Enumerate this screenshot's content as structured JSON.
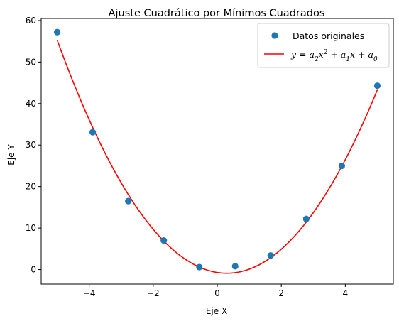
{
  "chart_data": {
    "type": "scatter",
    "title": "Ajuste Cuadrático por Mínimos Cuadrados",
    "xlabel": "Eje X",
    "ylabel": "Eje Y",
    "xlim": [
      -5.5,
      5.5
    ],
    "ylim": [
      -3.5,
      60.5
    ],
    "x_ticks": [
      -4,
      -2,
      0,
      2,
      4
    ],
    "y_ticks": [
      0,
      10,
      20,
      30,
      40,
      50,
      60
    ],
    "grid": false,
    "legend_position": "top-right",
    "series": [
      {
        "name": "Datos originales",
        "kind": "scatter",
        "color": "#1f77b4",
        "x": [
          -5.0,
          -3.89,
          -2.78,
          -1.67,
          -0.56,
          0.56,
          1.67,
          2.78,
          3.89,
          5.0
        ],
        "y": [
          57.2,
          33.1,
          16.5,
          7.0,
          0.6,
          0.8,
          3.4,
          12.2,
          25.0,
          44.3
        ]
      },
      {
        "name": "$y = a_2x^2 + a_1x + a_0$",
        "kind": "line",
        "color": "#ff0000",
        "x_range": [
          -5.0,
          5.0
        ],
        "coefficients": {
          "a2": 2.0,
          "a1": -1.2,
          "a0": -0.7
        }
      }
    ]
  }
}
